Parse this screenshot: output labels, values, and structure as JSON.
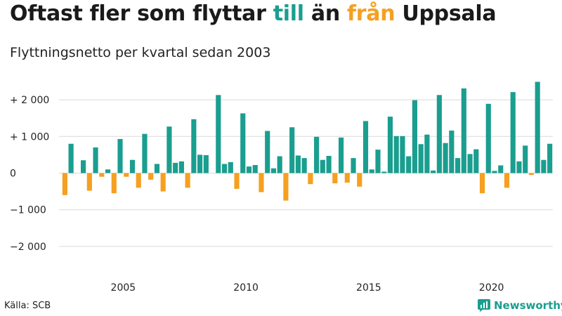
{
  "header": {
    "title_parts": [
      {
        "text": "Oftast fler som flyttar ",
        "color": "#1a1a1a"
      },
      {
        "text": "till",
        "color": "#1a9e8f"
      },
      {
        "text": " än ",
        "color": "#1a1a1a"
      },
      {
        "text": "från",
        "color": "#f5a020"
      },
      {
        "text": " Uppsala",
        "color": "#1a1a1a"
      }
    ],
    "subtitle": "Flyttningsnetto per kvartal sedan 2003"
  },
  "footer": {
    "source": "Källa: SCB",
    "brand": "Newsworthy"
  },
  "colors": {
    "positive": "#1a9e8f",
    "negative": "#f5a020",
    "grid": "#d9d9d9",
    "brand": "#1a9e8f"
  },
  "chart_data": {
    "type": "bar",
    "title": "Oftast fler som flyttar till än från Uppsala",
    "subtitle": "Flyttningsnetto per kvartal sedan 2003",
    "xlabel": "",
    "ylabel": "",
    "ylim": [
      -2600,
      2600
    ],
    "grid": true,
    "y_ticks": [
      2000,
      1000,
      0,
      -1000,
      -2000
    ],
    "y_tick_labels": [
      "+ 2 000",
      "+ 1 000",
      "0",
      "−1 000",
      "−2 000"
    ],
    "x_ticks": [
      2005,
      2010,
      2015,
      2020
    ],
    "x_tick_labels": [
      "2005",
      "2010",
      "2015",
      "2020"
    ],
    "x_start": 2003,
    "periods_per_year": 4,
    "values": [
      -600,
      800,
      0,
      350,
      -480,
      700,
      -100,
      100,
      -550,
      930,
      -100,
      360,
      -400,
      1070,
      -180,
      250,
      -500,
      1270,
      280,
      320,
      -400,
      1470,
      500,
      490,
      0,
      2130,
      250,
      300,
      -430,
      1630,
      180,
      220,
      -520,
      1150,
      130,
      460,
      -750,
      1250,
      480,
      410,
      -300,
      990,
      360,
      470,
      -280,
      970,
      -260,
      410,
      -370,
      1420,
      100,
      640,
      40,
      1540,
      1010,
      1010,
      460,
      1990,
      790,
      1050,
      70,
      2130,
      820,
      1160,
      410,
      2310,
      520,
      650,
      -550,
      1890,
      60,
      210,
      -400,
      2210,
      320,
      750,
      -50,
      2490,
      360,
      800
    ]
  }
}
